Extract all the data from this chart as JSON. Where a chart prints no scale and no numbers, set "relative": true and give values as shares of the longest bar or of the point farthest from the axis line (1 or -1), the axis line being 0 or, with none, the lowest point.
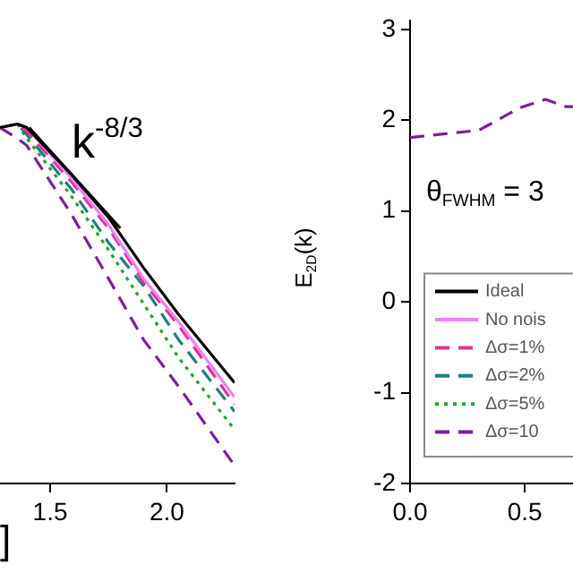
{
  "chart_data": [
    {
      "type": "line",
      "relative": true,
      "xlabel": "]",
      "xlim": [
        1.285,
        2.29
      ],
      "xticks": [
        1.5,
        {
          "value": 2,
          "label": "2.0"
        }
      ],
      "tick_labels": "x",
      "grid": false,
      "marker": "none",
      "legend": false,
      "annotations": [
        "k$^{-8/3}$"
      ],
      "x": [
        1.285,
        1.36,
        1.4,
        1.59,
        1.75,
        1.9,
        2.05,
        2.29
      ],
      "series": [
        {
          "color": "#000000",
          "line_style": "solid",
          "values": [
            0.99,
            1.0,
            0.99,
            0.86,
            0.74,
            0.6,
            0.47,
            0.28
          ]
        },
        {
          "color": "#ee82ee",
          "line_style": "solid",
          "values": [
            0.99,
            1.0,
            0.99,
            0.85,
            0.72,
            0.57,
            0.45,
            0.24
          ]
        },
        {
          "color": "#e0309a",
          "line_style": "dashed",
          "values": [
            0.99,
            1.0,
            0.98,
            0.84,
            0.71,
            0.56,
            0.44,
            0.22
          ]
        },
        {
          "color": "#1f7f7f",
          "line_style": "dashed",
          "values": [
            0.99,
            1.0,
            0.97,
            0.82,
            0.67,
            0.55,
            0.4,
            0.2
          ]
        },
        {
          "color": "#2ca02c",
          "line_style": "dotted",
          "values": [
            0.99,
            1.0,
            0.96,
            0.8,
            0.65,
            0.5,
            0.35,
            0.15
          ]
        },
        {
          "color": "#7a1fa0",
          "line_style": "dashed",
          "values": [
            0.99,
            0.96,
            0.94,
            0.75,
            0.57,
            0.4,
            0.27,
            0.05
          ]
        },
        {
          "color": "#000000",
          "line_style": "solid",
          "x": [
            1.41,
            1.8
          ],
          "values": [
            0.99,
            0.71
          ]
        }
      ]
    },
    {
      "type": "line",
      "ylabel": "E$_{2D}$(k)",
      "xlim": [
        0,
        0.71
      ],
      "xticks": [
        {
          "value": 0,
          "label": "0.0"
        },
        0.5
      ],
      "ylim": [
        -2,
        3.1
      ],
      "yticks": [
        -2,
        -1,
        0,
        1,
        2,
        3
      ],
      "grid": false,
      "marker": "none",
      "legend": "bottom",
      "annotations": [
        "θ$_{FWHM}$ = 3"
      ],
      "x": [
        0,
        0.3,
        0.48,
        0.59,
        0.68,
        0.71
      ],
      "series": [
        {
          "name": "Ideal",
          "color": "#000000",
          "line_style": "solid",
          "values": [
            null,
            null,
            null,
            null,
            null,
            null
          ]
        },
        {
          "name": "No nois",
          "color": "#ee82ee",
          "line_style": "solid",
          "values": [
            null,
            null,
            null,
            null,
            null,
            null
          ]
        },
        {
          "name": "Δσ=1%",
          "color": "#e0309a",
          "line_style": "dashed",
          "values": [
            null,
            null,
            null,
            null,
            null,
            null
          ]
        },
        {
          "name": "Δσ=2%",
          "color": "#1f7f7f",
          "line_style": "dashed",
          "values": [
            null,
            null,
            null,
            null,
            null,
            null
          ]
        },
        {
          "name": "Δσ=5%",
          "color": "#2ca02c",
          "line_style": "dotted",
          "values": [
            null,
            null,
            null,
            null,
            null,
            null
          ]
        },
        {
          "name": "Δσ=10",
          "color": "#7a1fa0",
          "line_style": "dashed",
          "values": [
            1.81,
            1.89,
            2.14,
            2.23,
            2.15,
            2.15
          ]
        }
      ]
    }
  ]
}
